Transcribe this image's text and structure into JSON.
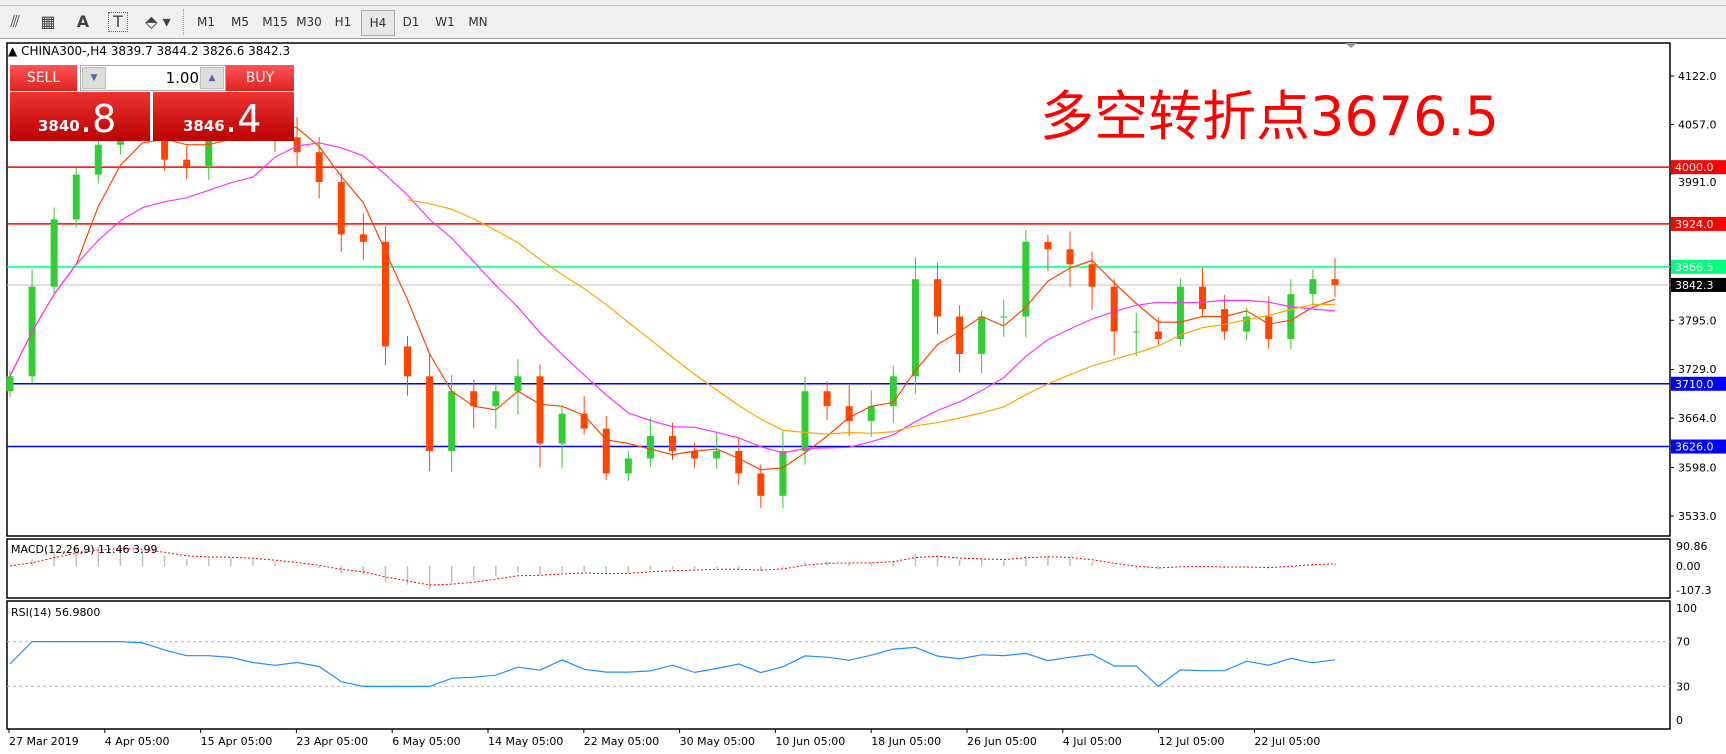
{
  "toolbar": {
    "icons": [
      "fibonacci-expansion-icon",
      "fibonacci-fan-icon",
      "text-icon",
      "text-label-icon",
      "arrows-icon"
    ],
    "icon_glyphs": [
      "⫻",
      "▦",
      "A",
      "T",
      "⬘"
    ],
    "timeframes": [
      "M1",
      "M5",
      "M15",
      "M30",
      "H1",
      "H4",
      "D1",
      "W1",
      "MN"
    ],
    "selected_timeframe": "H4"
  },
  "chart_header": {
    "symbol": "CHINA300-,H4",
    "ohlc": "3839.7 3844.2 3826.6 3842.3"
  },
  "trade_panel": {
    "sell_label": "SELL",
    "buy_label": "BUY",
    "lot": "1.00",
    "sell_price_main": "3840",
    "sell_price_big": ".8",
    "buy_price_main": "3846",
    "buy_price_big": ".4"
  },
  "annotation": "多空转折点3676.5",
  "colors": {
    "up": "#32cd32",
    "down": "#ff4500",
    "ma_fast": "#ff4500",
    "ma_mid": "#ff33ff",
    "ma_slow": "#ffa500",
    "resistance": "#ff0000",
    "pivot": "#00ff7f",
    "support": "#0000ff",
    "macd_signal": "#ff0000",
    "rsi": "#1e90ff"
  },
  "chart_data": {
    "type": "candlestick",
    "price_axis_ticks": [
      "4122.0",
      "4057.0",
      "3991.0",
      "3795.0",
      "3729.0",
      "3664.0",
      "3598.0",
      "3533.0"
    ],
    "price_range": [
      3533,
      4122
    ],
    "horizontal_levels": [
      {
        "value": 4000.0,
        "label": "4000.0",
        "color": "#ff0000"
      },
      {
        "value": 3924.0,
        "label": "3924.0",
        "color": "#ff0000"
      },
      {
        "value": 3866.5,
        "label": "3866.5",
        "color": "#00ff7f"
      },
      {
        "value": 3842.3,
        "label": "3842.3",
        "color": "#000000",
        "current": true
      },
      {
        "value": 3710.0,
        "label": "3710.0",
        "color": "#0000ff"
      },
      {
        "value": 3626.0,
        "label": "3626.0",
        "color": "#0000ff"
      }
    ],
    "closes": [
      3720,
      3840,
      3930,
      3990,
      4030,
      4060,
      4050,
      4010,
      4000,
      4060,
      4080,
      4070,
      4040,
      4020,
      3980,
      3910,
      3900,
      3760,
      3720,
      3620,
      3700,
      3680,
      3700,
      3720,
      3630,
      3670,
      3650,
      3590,
      3610,
      3640,
      3620,
      3610,
      3620,
      3590,
      3560,
      3620,
      3700,
      3680,
      3660,
      3680,
      3720,
      3850,
      3800,
      3750,
      3800,
      3800,
      3900,
      3890,
      3870,
      3840,
      3780,
      3780,
      3770,
      3840,
      3810,
      3780,
      3800,
      3770,
      3830,
      3850,
      3842.3
    ],
    "x_labels": [
      "27 Mar 2019",
      "4 Apr 05:00",
      "15 Apr 05:00",
      "23 Apr 05:00",
      "6 May 05:00",
      "14 May 05:00",
      "22 May 05:00",
      "30 May 05:00",
      "10 Jun 05:00",
      "18 Jun 05:00",
      "26 Jun 05:00",
      "4 Jul 05:00",
      "12 Jul 05:00",
      "22 Jul 05:00"
    ],
    "macd": {
      "label": "MACD(12,26,9) 11.46 3.99",
      "ticks": [
        "90.86",
        "0.00",
        "-107.3"
      ],
      "range": [
        -107.3,
        90.86
      ]
    },
    "rsi": {
      "label": "RSI(14) 56.9800",
      "ticks": [
        "100",
        "70",
        "30",
        "0"
      ],
      "levels": [
        70,
        30
      ],
      "range": [
        0,
        100
      ]
    }
  }
}
